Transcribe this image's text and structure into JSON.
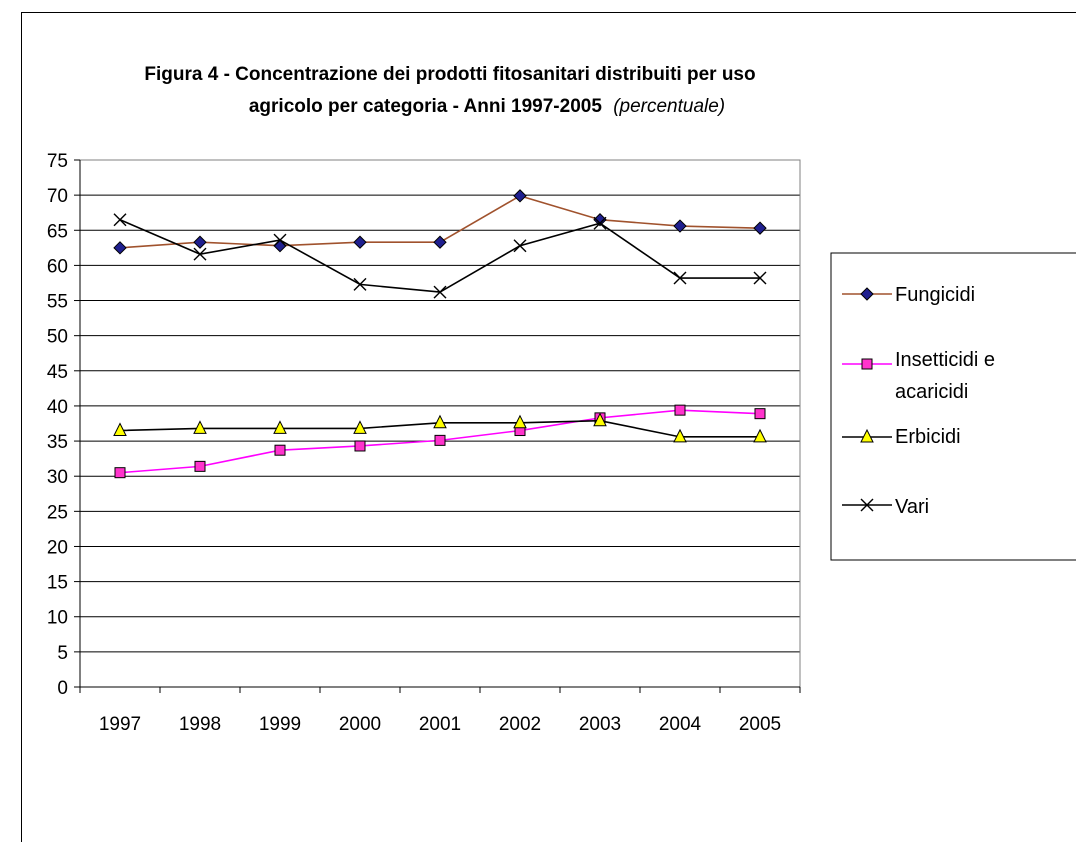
{
  "chart_data": {
    "type": "line",
    "title_line1": "Figura 4 - Concentrazione dei prodotti fitosanitari distribuiti per uso",
    "title_line2": "agricolo per categoria - Anni 1997-2005",
    "title_unit": "(percentuale)",
    "categories": [
      "1997",
      "1998",
      "1999",
      "2000",
      "2001",
      "2002",
      "2003",
      "2004",
      "2005"
    ],
    "ylim": [
      0,
      75
    ],
    "yticks": [
      0,
      5,
      10,
      15,
      20,
      25,
      30,
      35,
      40,
      45,
      50,
      55,
      60,
      65,
      70,
      75
    ],
    "grid": true,
    "legend_position": "right",
    "series": [
      {
        "name": "Fungicidi",
        "values": [
          62.5,
          63.3,
          62.8,
          63.3,
          63.3,
          69.9,
          66.5,
          65.6,
          65.3
        ],
        "marker": "diamond",
        "line_color": "#A0522D",
        "marker_fill": "#1F1F8F"
      },
      {
        "name": "Insetticidi e acaricidi",
        "values": [
          30.5,
          31.4,
          33.7,
          34.3,
          35.1,
          36.5,
          38.3,
          39.4,
          38.9
        ],
        "marker": "square",
        "line_color": "#FF00FF",
        "marker_fill": "#FF33CC"
      },
      {
        "name": "Erbicidi",
        "values": [
          36.5,
          36.8,
          36.8,
          36.8,
          37.6,
          37.6,
          37.9,
          35.6,
          35.6
        ],
        "marker": "triangle",
        "line_color": "#000000",
        "marker_fill": "#FFFF00"
      },
      {
        "name": "Vari",
        "values": [
          66.5,
          61.6,
          63.6,
          57.3,
          56.2,
          62.8,
          66.0,
          58.2,
          58.2
        ],
        "marker": "x",
        "line_color": "#000000",
        "marker_fill": "none"
      }
    ],
    "legend_lines": [
      [
        "Fungicidi"
      ],
      [
        "Insetticidi e",
        "acaricidi"
      ],
      [
        "Erbicidi"
      ],
      [
        "Vari"
      ]
    ]
  }
}
